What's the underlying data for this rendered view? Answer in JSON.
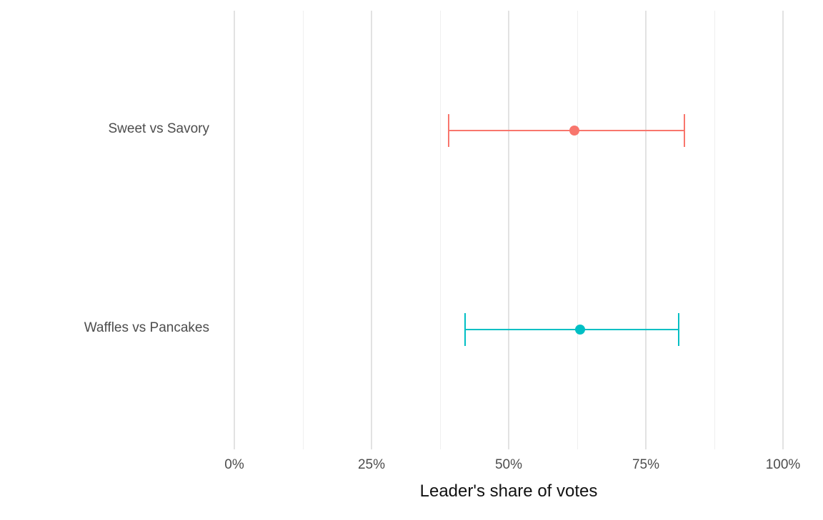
{
  "chart_data": {
    "type": "scatter",
    "subtype": "horizontal-errorbar",
    "title": "",
    "xlabel": "Leader's share of votes",
    "ylabel": "",
    "xlim": [
      0,
      100
    ],
    "x_ticks": [
      "0%",
      "25%",
      "50%",
      "75%",
      "100%"
    ],
    "x_tick_values": [
      0,
      25,
      50,
      75,
      100
    ],
    "x_minor_values": [
      12.5,
      37.5,
      62.5,
      87.5
    ],
    "grid": "vertical major and minor gridlines, no horizontal gridlines, white background",
    "legend": "none",
    "categories": [
      "Sweet vs Savory",
      "Waffles vs Pancakes"
    ],
    "points": [
      {
        "label": "Sweet vs Savory",
        "estimate": 62,
        "ci_low": 39,
        "ci_high": 82,
        "color": "#F8766D"
      },
      {
        "label": "Waffles vs Pancakes",
        "estimate": 63,
        "ci_low": 42,
        "ci_high": 81,
        "color": "#00BFC4"
      }
    ],
    "colors": {
      "grid_major": "#e2e2e2",
      "grid_minor": "#efefef",
      "axis_text": "#4d4d4d",
      "axis_title": "#111111"
    }
  }
}
